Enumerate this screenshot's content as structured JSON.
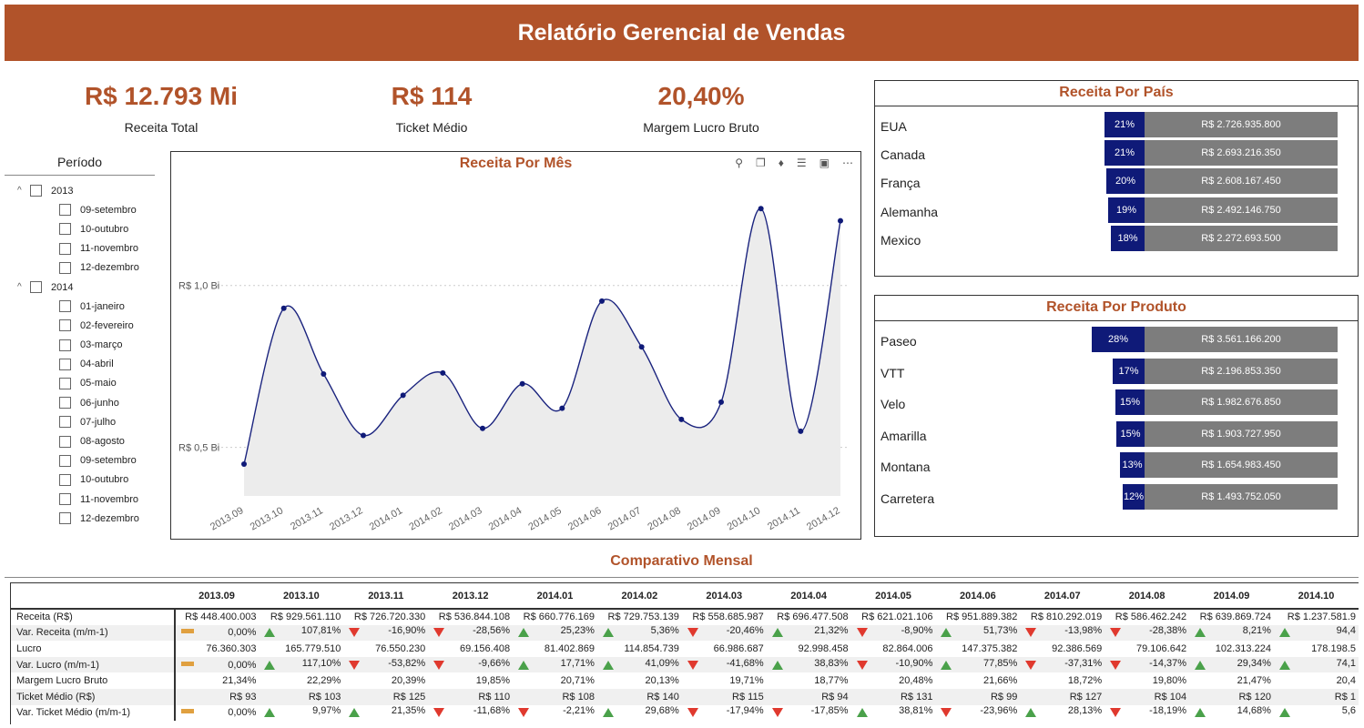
{
  "header": {
    "title": "Relatório Gerencial de Vendas"
  },
  "kpis": [
    {
      "value": "R$ 12.793 Mi",
      "label": "Receita Total"
    },
    {
      "value": "R$ 114",
      "label": "Ticket Médio"
    },
    {
      "value": "20,40%",
      "label": "Margem Lucro Bruto"
    }
  ],
  "slicer": {
    "title": "Período",
    "years": [
      {
        "label": "2013",
        "months": [
          "09-setembro",
          "10-outubro",
          "11-novembro",
          "12-dezembro"
        ]
      },
      {
        "label": "2014",
        "months": [
          "01-janeiro",
          "02-fevereiro",
          "03-março",
          "04-abril",
          "05-maio",
          "06-junho",
          "07-julho",
          "08-agosto",
          "09-setembro",
          "10-outubro",
          "11-novembro",
          "12-dezembro"
        ]
      }
    ]
  },
  "colors": {
    "accent": "#b1532a",
    "bar_pct": "#0f1a78",
    "bar_amt": "#7d7d7d",
    "up": "#4aa14a",
    "down": "#e0392e",
    "neutral": "#e0a040"
  },
  "chart_data": [
    {
      "type": "area",
      "title": "Receita Por Mês",
      "x": [
        "2013.09",
        "2013.10",
        "2013.11",
        "2013.12",
        "2014.01",
        "2014.02",
        "2014.03",
        "2014.04",
        "2014.05",
        "2014.06",
        "2014.07",
        "2014.08",
        "2014.09",
        "2014.10",
        "2014.11",
        "2014.12"
      ],
      "y": [
        448400003,
        929561110,
        726720330,
        536844108,
        660776169,
        729753139,
        558685987,
        696477508,
        621021106,
        951889382,
        810292019,
        586462242,
        639869724,
        1237581900,
        550000000,
        1200000000
      ],
      "y_ticks": [
        {
          "value": 500000000,
          "label": "R$ 0,5 Bi"
        },
        {
          "value": 1000000000,
          "label": "R$ 1,0 Bi"
        }
      ],
      "ylim": [
        350000000,
        1300000000
      ],
      "grid": true,
      "legend": "none"
    },
    {
      "type": "bar",
      "title": "Receita Por País",
      "categories": [
        "EUA",
        "Canada",
        "França",
        "Alemanha",
        "Mexico"
      ],
      "percent": [
        "21%",
        "21%",
        "20%",
        "19%",
        "18%"
      ],
      "values": [
        2726935800,
        2693216350,
        2608167450,
        2492146750,
        2272693500
      ],
      "labels": [
        "R$ 2.726.935.800",
        "R$ 2.693.216.350",
        "R$ 2.608.167.450",
        "R$ 2.492.146.750",
        "R$ 2.272.693.500"
      ]
    },
    {
      "type": "bar",
      "title": "Receita Por Produto",
      "categories": [
        "Paseo",
        "VTT",
        "Velo",
        "Amarilla",
        "Montana",
        "Carretera"
      ],
      "percent": [
        "28%",
        "17%",
        "15%",
        "15%",
        "13%",
        "12%"
      ],
      "values": [
        3561166200,
        2196853350,
        1982676850,
        1903727950,
        1654983450,
        1493752050
      ],
      "labels": [
        "R$ 3.561.166.200",
        "R$ 2.196.853.350",
        "R$ 1.982.676.850",
        "R$ 1.903.727.950",
        "R$ 1.654.983.450",
        "R$ 1.493.752.050"
      ]
    }
  ],
  "comparativo": {
    "title": "Comparativo Mensal",
    "columns": [
      "2013.09",
      "2013.10",
      "2013.11",
      "2013.12",
      "2014.01",
      "2014.02",
      "2014.03",
      "2014.04",
      "2014.05",
      "2014.06",
      "2014.07",
      "2014.08",
      "2014.09",
      "2014.10"
    ],
    "rows": [
      {
        "label": "Receita (R$)",
        "cells": [
          "R$ 448.400.003",
          "R$ 929.561.110",
          "R$ 726.720.330",
          "R$ 536.844.108",
          "R$ 660.776.169",
          "R$ 729.753.139",
          "R$ 558.685.987",
          "R$ 696.477.508",
          "R$ 621.021.106",
          "R$ 951.889.382",
          "R$ 810.292.019",
          "R$ 586.462.242",
          "R$ 639.869.724",
          "R$ 1.237.581.9"
        ]
      },
      {
        "label": "Var. Receita (m/m-1)",
        "cells": [
          "0,00%",
          "107,81%",
          "-16,90%",
          "-28,56%",
          "25,23%",
          "5,36%",
          "-20,46%",
          "21,32%",
          "-8,90%",
          "51,73%",
          "-13,98%",
          "-28,38%",
          "8,21%",
          "94,4"
        ],
        "ind": [
          "nt",
          "up",
          "dn",
          "dn",
          "up",
          "up",
          "dn",
          "up",
          "dn",
          "up",
          "dn",
          "dn",
          "up",
          "up"
        ]
      },
      {
        "label": "Lucro",
        "cells": [
          "76.360.303",
          "165.779.510",
          "76.550.230",
          "69.156.408",
          "81.402.869",
          "114.854.739",
          "66.986.687",
          "92.998.458",
          "82.864.006",
          "147.375.382",
          "92.386.569",
          "79.106.642",
          "102.313.224",
          "178.198.5"
        ]
      },
      {
        "label": "Var. Lucro (m/m-1)",
        "cells": [
          "0,00%",
          "117,10%",
          "-53,82%",
          "-9,66%",
          "17,71%",
          "41,09%",
          "-41,68%",
          "38,83%",
          "-10,90%",
          "77,85%",
          "-37,31%",
          "-14,37%",
          "29,34%",
          "74,1"
        ],
        "ind": [
          "nt",
          "up",
          "dn",
          "dn",
          "up",
          "up",
          "dn",
          "up",
          "dn",
          "up",
          "dn",
          "dn",
          "up",
          "up"
        ]
      },
      {
        "label": "Margem Lucro Bruto",
        "cells": [
          "21,34%",
          "22,29%",
          "20,39%",
          "19,85%",
          "20,71%",
          "20,13%",
          "19,71%",
          "18,77%",
          "20,48%",
          "21,66%",
          "18,72%",
          "19,80%",
          "21,47%",
          "20,4"
        ]
      },
      {
        "label": "Ticket Médio (R$)",
        "cells": [
          "R$ 93",
          "R$ 103",
          "R$ 125",
          "R$ 110",
          "R$ 108",
          "R$ 140",
          "R$ 115",
          "R$ 94",
          "R$ 131",
          "R$ 99",
          "R$ 127",
          "R$ 104",
          "R$ 120",
          "R$ 1"
        ]
      },
      {
        "label": "Var. Ticket Médio (m/m-1)",
        "cells": [
          "0,00%",
          "9,97%",
          "21,35%",
          "-11,68%",
          "-2,21%",
          "29,68%",
          "-17,94%",
          "-17,85%",
          "38,81%",
          "-23,96%",
          "28,13%",
          "-18,19%",
          "14,68%",
          "5,6"
        ],
        "ind": [
          "nt",
          "up",
          "up",
          "dn",
          "dn",
          "up",
          "dn",
          "dn",
          "up",
          "dn",
          "up",
          "dn",
          "up",
          "up"
        ]
      }
    ]
  }
}
